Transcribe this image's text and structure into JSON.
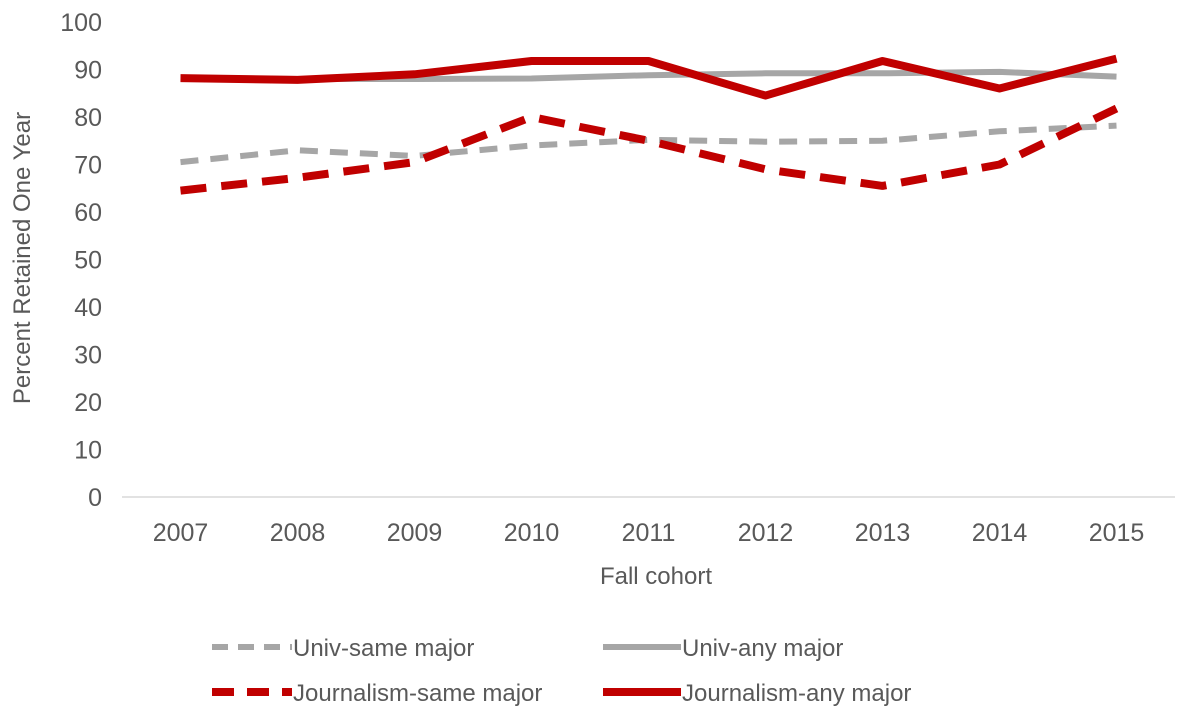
{
  "chart_data": {
    "type": "line",
    "title": "",
    "xlabel": "Fall cohort",
    "ylabel": "Percent Retained One Year",
    "categories": [
      "2007",
      "2008",
      "2009",
      "2010",
      "2011",
      "2012",
      "2013",
      "2014",
      "2015"
    ],
    "ylim": [
      0,
      100
    ],
    "yticks": [
      "0",
      "10",
      "20",
      "30",
      "40",
      "50",
      "60",
      "70",
      "80",
      "90",
      "100"
    ],
    "grid": false,
    "legend_position": "bottom",
    "series": [
      {
        "name": "Univ-same major",
        "color": "#A6A6A6",
        "dash": "dashed",
        "values": [
          70.5,
          73,
          71.8,
          74,
          75.2,
          74.8,
          75,
          77,
          78.2
        ]
      },
      {
        "name": "Univ-any major",
        "color": "#A6A6A6",
        "dash": "solid",
        "values": [
          88.2,
          88,
          88,
          88.1,
          88.8,
          89.2,
          89.2,
          89.5,
          88.5
        ]
      },
      {
        "name": "Journalism-same major",
        "color": "#C00000",
        "dash": "dashed",
        "values": [
          64.5,
          67.2,
          70.5,
          80,
          75,
          69,
          65.5,
          70,
          81.8
        ]
      },
      {
        "name": "Journalism-any major",
        "color": "#C00000",
        "dash": "solid",
        "values": [
          88.2,
          87.8,
          89,
          91.8,
          91.8,
          84.5,
          91.8,
          86,
          92.3
        ]
      }
    ]
  }
}
